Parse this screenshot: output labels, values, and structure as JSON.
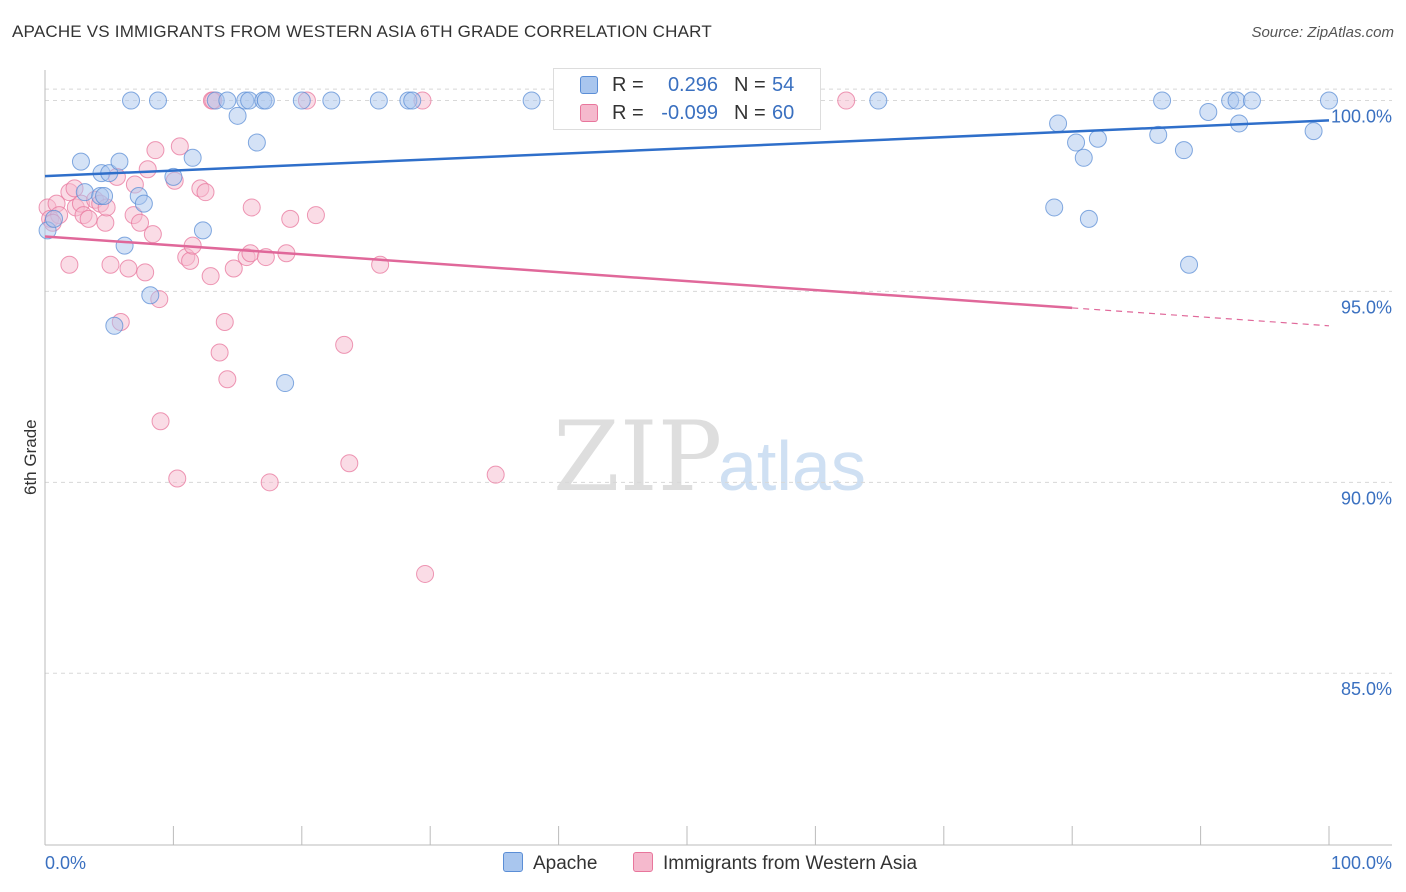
{
  "title": "APACHE VS IMMIGRANTS FROM WESTERN ASIA 6TH GRADE CORRELATION CHART",
  "source": "Source: ZipAtlas.com",
  "watermark": {
    "zip": "ZIP",
    "atlas": "atlas"
  },
  "colors": {
    "apache": "#5b8ed6",
    "apache_fill": "#a9c6ee",
    "immigrants": "#e8769c",
    "immigrants_fill": "#f5b9cd",
    "tick_label": "#3a70c0",
    "grid": "#d8d8d8"
  },
  "legend": {
    "rows": [
      {
        "r_label": "R =",
        "r_value": "0.296",
        "n_label": "N =",
        "n_value": "54"
      },
      {
        "r_label": "R =",
        "r_value": "-0.099",
        "n_label": "N =",
        "n_value": "60"
      }
    ]
  },
  "chart_data": {
    "type": "scatter",
    "title": "APACHE VS IMMIGRANTS FROM WESTERN ASIA 6TH GRADE CORRELATION CHART",
    "xlabel": "",
    "ylabel": "6th Grade",
    "xlim": [
      0,
      100
    ],
    "ylim": [
      80.5,
      100.8
    ],
    "x_tick_labels": [
      "0.0%",
      "100.0%"
    ],
    "y_ticks": [
      {
        "value": 100,
        "label": "100.0%"
      },
      {
        "value": 95,
        "label": "95.0%"
      },
      {
        "value": 90,
        "label": "90.0%"
      },
      {
        "value": 85,
        "label": "85.0%"
      }
    ],
    "grid": true,
    "legend_position": "top-center",
    "series": [
      {
        "name": "Apache",
        "trend": {
          "x0": 0,
          "y0": 98.02,
          "x1": 100,
          "y1": 99.48
        },
        "points": [
          [
            0.2,
            96.6
          ],
          [
            0.7,
            96.9
          ],
          [
            2.8,
            98.4
          ],
          [
            3.1,
            97.6
          ],
          [
            4.3,
            97.5
          ],
          [
            4.6,
            97.5
          ],
          [
            4.4,
            98.1
          ],
          [
            5.0,
            98.1
          ],
          [
            5.8,
            98.4
          ],
          [
            6.2,
            96.2
          ],
          [
            7.3,
            97.5
          ],
          [
            7.7,
            97.3
          ],
          [
            8.2,
            94.9
          ],
          [
            5.4,
            94.1
          ],
          [
            10.0,
            98.0
          ],
          [
            12.3,
            96.6
          ],
          [
            11.5,
            98.5
          ],
          [
            6.7,
            100.0
          ],
          [
            8.8,
            100.0
          ],
          [
            13.3,
            100.0
          ],
          [
            14.2,
            100.0
          ],
          [
            15.0,
            99.6
          ],
          [
            15.6,
            100.0
          ],
          [
            15.9,
            100.0
          ],
          [
            16.5,
            98.9
          ],
          [
            17.0,
            100.0
          ],
          [
            17.2,
            100.0
          ],
          [
            18.7,
            92.6
          ],
          [
            20.0,
            100.0
          ],
          [
            22.3,
            100.0
          ],
          [
            26.0,
            100.0
          ],
          [
            28.3,
            100.0
          ],
          [
            28.6,
            100.0
          ],
          [
            37.9,
            100.0
          ],
          [
            42.2,
            99.9
          ],
          [
            47.0,
            100.0
          ],
          [
            64.9,
            100.0
          ],
          [
            78.6,
            97.2
          ],
          [
            78.9,
            99.4
          ],
          [
            80.3,
            98.9
          ],
          [
            80.9,
            98.5
          ],
          [
            81.3,
            96.9
          ],
          [
            82.0,
            99.0
          ],
          [
            86.7,
            99.1
          ],
          [
            87.0,
            100.0
          ],
          [
            88.7,
            98.7
          ],
          [
            89.1,
            95.7
          ],
          [
            90.6,
            99.7
          ],
          [
            92.3,
            100.0
          ],
          [
            92.8,
            100.0
          ],
          [
            93.0,
            99.4
          ],
          [
            94.0,
            100.0
          ],
          [
            98.8,
            99.2
          ],
          [
            100.0,
            100.0
          ]
        ]
      },
      {
        "name": "Immigrants from Western Asia",
        "trend": {
          "x0": 0,
          "y0": 96.44,
          "x1": 100,
          "y1": 94.1,
          "solid_until_x": 80
        },
        "points": [
          [
            0.2,
            97.2
          ],
          [
            0.4,
            96.9
          ],
          [
            0.9,
            97.3
          ],
          [
            1.1,
            97.0
          ],
          [
            1.9,
            95.7
          ],
          [
            1.9,
            97.6
          ],
          [
            2.3,
            97.7
          ],
          [
            2.4,
            97.2
          ],
          [
            2.8,
            97.3
          ],
          [
            3.0,
            97.0
          ],
          [
            3.4,
            96.9
          ],
          [
            3.9,
            97.4
          ],
          [
            4.3,
            97.3
          ],
          [
            4.7,
            96.8
          ],
          [
            4.8,
            97.2
          ],
          [
            5.1,
            95.7
          ],
          [
            5.6,
            98.0
          ],
          [
            5.9,
            94.2
          ],
          [
            6.5,
            95.6
          ],
          [
            6.9,
            97.0
          ],
          [
            7.0,
            97.8
          ],
          [
            7.4,
            96.8
          ],
          [
            7.8,
            95.5
          ],
          [
            8.0,
            98.2
          ],
          [
            8.4,
            96.5
          ],
          [
            8.6,
            98.7
          ],
          [
            8.9,
            94.8
          ],
          [
            9.0,
            91.6
          ],
          [
            10.1,
            97.9
          ],
          [
            10.3,
            90.1
          ],
          [
            10.5,
            98.8
          ],
          [
            11.0,
            95.9
          ],
          [
            11.3,
            95.8
          ],
          [
            11.5,
            96.2
          ],
          [
            12.1,
            97.7
          ],
          [
            12.5,
            97.6
          ],
          [
            12.9,
            95.4
          ],
          [
            13.0,
            100.0
          ],
          [
            13.1,
            100.0
          ],
          [
            13.6,
            93.4
          ],
          [
            14.0,
            94.2
          ],
          [
            14.2,
            92.7
          ],
          [
            14.7,
            95.6
          ],
          [
            15.7,
            95.9
          ],
          [
            16.0,
            96.0
          ],
          [
            16.1,
            97.2
          ],
          [
            17.2,
            95.9
          ],
          [
            17.5,
            90.0
          ],
          [
            18.8,
            96.0
          ],
          [
            19.1,
            96.9
          ],
          [
            20.4,
            100.0
          ],
          [
            21.1,
            97.0
          ],
          [
            23.3,
            93.6
          ],
          [
            23.7,
            90.5
          ],
          [
            26.1,
            95.7
          ],
          [
            29.4,
            100.0
          ],
          [
            29.6,
            87.6
          ],
          [
            35.1,
            90.2
          ],
          [
            62.4,
            100.0
          ],
          [
            0.6,
            96.8
          ]
        ]
      }
    ]
  }
}
